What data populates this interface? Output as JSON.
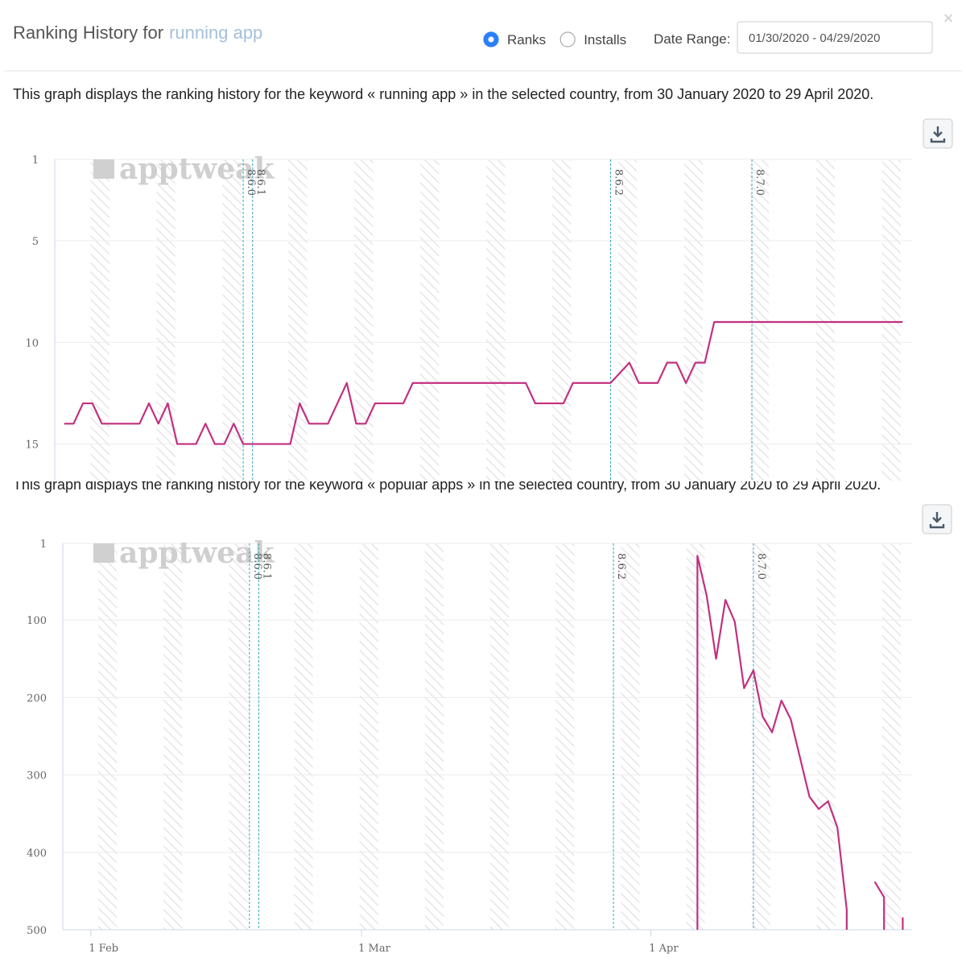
{
  "header": {
    "title": "Ranking History for",
    "keyword": "running app",
    "options": [
      "Ranks",
      "Installs"
    ],
    "selected": "Ranks",
    "date_range_label": "Date Range:",
    "date_range": "01/30/2020 - 04/29/2020",
    "close": "×"
  },
  "chart_data": [
    {
      "type": "line",
      "description": "This graph displays the ranking history for the keyword « running app » in the selected country, from 30 January 2020 to 29 April 2020.",
      "watermark": "apptweak",
      "xlim": [
        "29 Jan",
        "29 Apr"
      ],
      "ylim": [
        1,
        16.8
      ],
      "y_reversed": true,
      "yticks": [
        1,
        5,
        10,
        15
      ],
      "grid": true,
      "annotations": [
        {
          "x": "18 Feb",
          "label": "8.6.0"
        },
        {
          "x": "19 Feb",
          "label": "8.6.1"
        },
        {
          "x": "28 Mar",
          "label": "8.6.2"
        },
        {
          "x": "12 Apr",
          "label": "8.7.0"
        }
      ],
      "color": "#c2307f",
      "x": [
        "30 Jan",
        "31 Jan",
        "1 Feb",
        "2 Feb",
        "3 Feb",
        "7 Feb",
        "8 Feb",
        "9 Feb",
        "10 Feb",
        "11 Feb",
        "13 Feb",
        "14 Feb",
        "15 Feb",
        "16 Feb",
        "17 Feb",
        "18 Feb",
        "23 Feb",
        "24 Feb",
        "25 Feb",
        "27 Feb",
        "29 Feb",
        "1 Mar",
        "2 Mar",
        "3 Mar",
        "6 Mar",
        "7 Mar",
        "19 Mar",
        "20 Mar",
        "23 Mar",
        "24 Mar",
        "28 Mar",
        "30 Mar",
        "31 Mar",
        "2 Apr",
        "3 Apr",
        "4 Apr",
        "5 Apr",
        "6 Apr",
        "7 Apr",
        "8 Apr",
        "28 Apr"
      ],
      "values": [
        14,
        14,
        13,
        13,
        14,
        14,
        13,
        14,
        13,
        15,
        15,
        14,
        15,
        15,
        14,
        15,
        15,
        13,
        14,
        14,
        12,
        14,
        14,
        13,
        13,
        12,
        12,
        13,
        13,
        12,
        12,
        11,
        12,
        12,
        11,
        11,
        12,
        11,
        11,
        9,
        9
      ]
    },
    {
      "type": "line",
      "description": "This graph displays the ranking history for the keyword « popular apps » in the selected country, from 30 January 2020 to 29 April 2020.",
      "watermark": "apptweak",
      "xlim": [
        "29 Jan",
        "29 Apr"
      ],
      "xticks": [
        "1 Feb",
        "1 Mar",
        "1 Apr"
      ],
      "ylim": [
        1,
        500
      ],
      "y_reversed": true,
      "yticks": [
        1,
        100,
        200,
        300,
        400,
        500
      ],
      "grid": true,
      "annotations": [
        {
          "x": "18 Feb",
          "label": "8.6.0"
        },
        {
          "x": "19 Feb",
          "label": "8.6.1"
        },
        {
          "x": "28 Mar",
          "label": "8.6.2"
        },
        {
          "x": "12 Apr",
          "label": "8.7.0"
        }
      ],
      "color": "#c2307f",
      "x": [
        "6 Apr",
        "6 Apr",
        "7 Apr",
        "8 Apr",
        "9 Apr",
        "10 Apr",
        "11 Apr",
        "12 Apr",
        "13 Apr",
        "14 Apr",
        "15 Apr",
        "16 Apr",
        "18 Apr",
        "19 Apr",
        "20 Apr",
        "21 Apr",
        "22 Apr",
        "22 Apr",
        "23 Apr",
        "25 Apr",
        "26 Apr",
        "26 Apr",
        "27 Apr",
        "28 Apr",
        "28 Apr"
      ],
      "values": [
        500,
        17,
        69,
        150,
        74,
        102,
        188,
        165,
        225,
        245,
        204,
        228,
        328,
        344,
        334,
        368,
        474,
        500,
        null,
        438,
        458,
        500,
        null,
        484,
        500
      ]
    }
  ]
}
